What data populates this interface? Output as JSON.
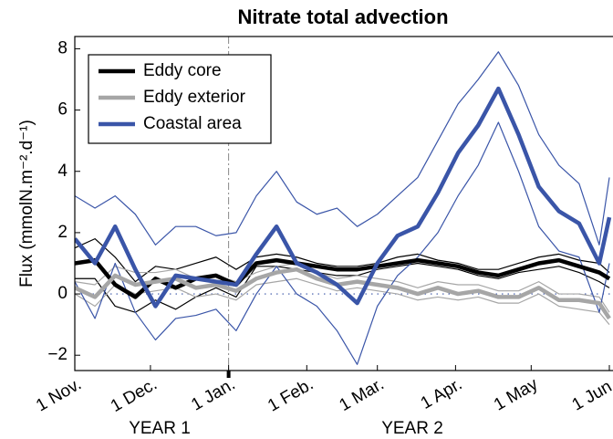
{
  "chart_data": {
    "type": "line",
    "title": "Nitrate total advection",
    "ylabel": "Flux (mmolN.m⁻².d⁻¹)",
    "annotations": [
      "YEAR 1",
      "YEAR 2"
    ],
    "x": [
      0,
      8,
      16,
      24,
      32,
      40,
      48,
      56,
      64,
      72,
      80,
      88,
      96,
      104,
      112,
      120,
      128,
      136,
      144,
      152,
      160,
      168,
      176,
      184,
      192,
      200,
      208,
      212
    ],
    "xlim": [
      0,
      212
    ],
    "xticks": [
      {
        "value": 0,
        "label": "1 Nov."
      },
      {
        "value": 30,
        "label": "1 Dec."
      },
      {
        "value": 61,
        "label": "1 Jan."
      },
      {
        "value": 92,
        "label": "1 Feb."
      },
      {
        "value": 120,
        "label": "1 Mar."
      },
      {
        "value": 151,
        "label": "1 Apr."
      },
      {
        "value": 181,
        "label": "1 May"
      },
      {
        "value": 212,
        "label": "1 Jun."
      }
    ],
    "ylim": [
      -2.5,
      8.4
    ],
    "yticks": [
      {
        "value": -2,
        "label": "−2"
      },
      0,
      2,
      4,
      6,
      8
    ],
    "legend": "upper-left",
    "series": [
      {
        "name": "Eddy core",
        "color": "#000000",
        "values": [
          1.0,
          1.1,
          0.3,
          -0.1,
          0.5,
          0.2,
          0.5,
          0.6,
          0.3,
          1.0,
          1.1,
          1.0,
          0.9,
          0.8,
          0.8,
          0.9,
          1.0,
          1.1,
          1.0,
          0.9,
          0.7,
          0.6,
          0.8,
          1.0,
          1.1,
          0.9,
          0.7,
          0.5
        ],
        "upper": [
          1.5,
          1.8,
          1.2,
          0.4,
          0.9,
          0.8,
          1.0,
          1.2,
          0.8,
          1.2,
          1.3,
          1.2,
          1.0,
          0.9,
          0.9,
          1.0,
          1.2,
          1.3,
          1.1,
          1.0,
          0.8,
          0.8,
          1.0,
          1.2,
          1.3,
          1.1,
          1.0,
          0.7
        ],
        "lower": [
          0.5,
          0.5,
          -0.4,
          -0.6,
          -0.2,
          -0.5,
          -0.1,
          0.2,
          -0.1,
          0.9,
          0.9,
          0.8,
          0.7,
          0.6,
          0.6,
          0.8,
          0.9,
          1.0,
          0.9,
          0.8,
          0.6,
          0.5,
          0.7,
          0.8,
          0.9,
          0.7,
          0.4,
          0.2
        ]
      },
      {
        "name": "Eddy exterior",
        "color": "#a6a6a6",
        "values": [
          0.2,
          -0.1,
          0.6,
          0.3,
          0.4,
          0.5,
          0.2,
          0.3,
          0.1,
          0.5,
          0.7,
          0.8,
          0.5,
          0.3,
          0.4,
          0.3,
          0.2,
          0.0,
          0.2,
          0.0,
          0.1,
          -0.1,
          -0.1,
          0.2,
          -0.2,
          -0.2,
          -0.3,
          -0.8
        ],
        "upper": [
          0.4,
          0.3,
          0.9,
          0.7,
          0.7,
          0.8,
          0.5,
          0.6,
          0.4,
          0.7,
          0.9,
          1.0,
          0.7,
          0.5,
          0.6,
          0.5,
          0.4,
          0.2,
          0.4,
          0.3,
          0.3,
          0.1,
          0.1,
          0.4,
          0.0,
          0.0,
          -0.1,
          -0.6
        ],
        "lower": [
          0.0,
          -0.4,
          0.3,
          0.0,
          0.1,
          0.2,
          -0.1,
          0.0,
          -0.2,
          0.3,
          0.4,
          0.5,
          0.3,
          0.1,
          0.2,
          0.1,
          0.0,
          -0.2,
          -0.1,
          -0.2,
          -0.1,
          -0.3,
          -0.3,
          0.0,
          -0.4,
          -0.5,
          -0.6,
          -1.0
        ]
      },
      {
        "name": "Coastal area",
        "color": "#3a55a8",
        "values": [
          1.8,
          1.0,
          2.2,
          0.8,
          -0.4,
          0.6,
          0.5,
          0.4,
          0.3,
          1.3,
          2.2,
          1.0,
          0.7,
          0.3,
          -0.3,
          1.0,
          1.9,
          2.2,
          3.3,
          4.6,
          5.5,
          6.7,
          5.2,
          3.5,
          2.7,
          2.3,
          1.0,
          2.5
        ],
        "upper": [
          3.2,
          2.8,
          3.2,
          2.6,
          1.6,
          2.2,
          2.2,
          1.9,
          2.0,
          3.2,
          4.0,
          3.0,
          2.6,
          2.8,
          2.2,
          2.6,
          3.2,
          3.8,
          5.0,
          6.2,
          7.0,
          7.9,
          6.8,
          5.2,
          4.2,
          3.6,
          1.6,
          3.8
        ],
        "lower": [
          0.4,
          -0.8,
          1.0,
          -0.6,
          -1.5,
          -0.8,
          -0.7,
          -0.5,
          -1.2,
          0.0,
          0.9,
          0.0,
          -0.4,
          -1.2,
          -2.3,
          -0.4,
          0.6,
          1.2,
          2.0,
          3.2,
          4.2,
          5.6,
          4.0,
          2.2,
          1.4,
          1.2,
          -0.6,
          1.0
        ]
      }
    ]
  }
}
